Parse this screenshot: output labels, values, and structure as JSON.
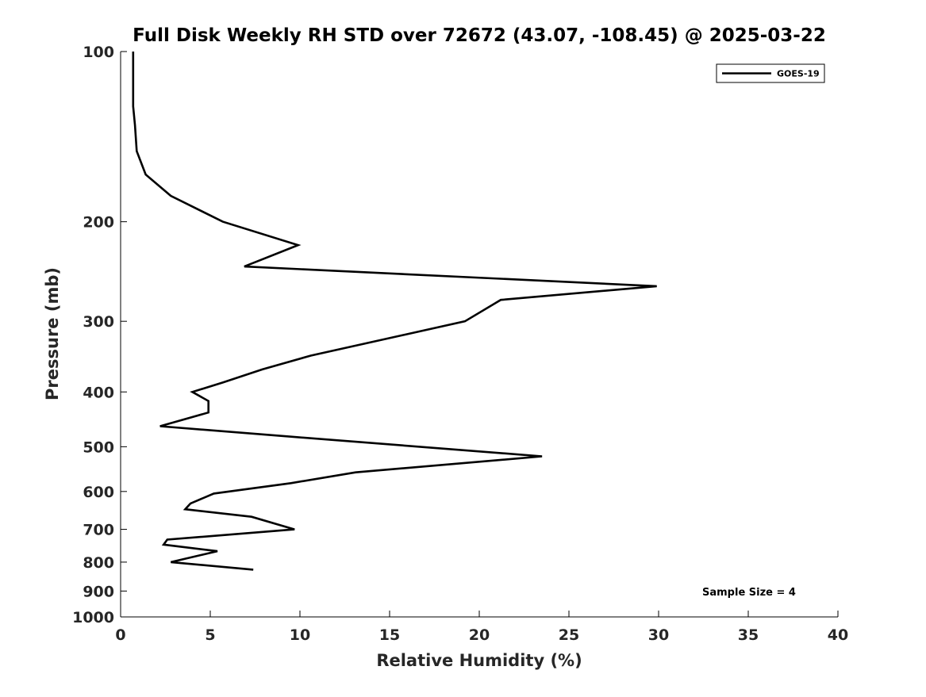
{
  "chart_data": {
    "type": "line",
    "title": "Full Disk Weekly RH STD over 72672 (43.07, -108.45) @ 2025-03-22",
    "xlabel": "Relative Humidity (%)",
    "ylabel": "Pressure (mb)",
    "xlim": [
      0,
      40
    ],
    "ylim": [
      100,
      1000
    ],
    "y_scale": "log",
    "y_inverted": true,
    "x_ticks": [
      0,
      5,
      10,
      15,
      20,
      25,
      30,
      35,
      40
    ],
    "y_ticks": [
      100,
      200,
      300,
      400,
      500,
      600,
      700,
      800,
      900,
      1000
    ],
    "grid": false,
    "legend_position": "top-right",
    "annotation": "Sample Size = 4",
    "series": [
      {
        "name": "GOES-19",
        "color": "#000000",
        "x": [
          0.7,
          0.7,
          0.7,
          0.8,
          0.9,
          1.4,
          2.8,
          5.7,
          9.9,
          6.9,
          29.9,
          21.2,
          19.2,
          10.6,
          7.9,
          5.7,
          4.0,
          4.9,
          4.9,
          2.2,
          9.5,
          23.5,
          13.1,
          9.5,
          5.2,
          3.9,
          3.6,
          7.3,
          9.7,
          2.6,
          2.4,
          5.4,
          2.8,
          7.4
        ],
        "y": [
          100,
          110,
          125,
          135,
          150,
          165,
          180,
          200,
          220,
          240,
          260,
          275,
          300,
          345,
          365,
          385,
          400,
          415,
          435,
          460,
          480,
          520,
          555,
          580,
          605,
          630,
          645,
          665,
          700,
          730,
          745,
          765,
          800,
          825
        ]
      }
    ]
  },
  "colors": {
    "axis": "#000000",
    "text": "#262626",
    "series": "#000000",
    "background": "#ffffff"
  }
}
